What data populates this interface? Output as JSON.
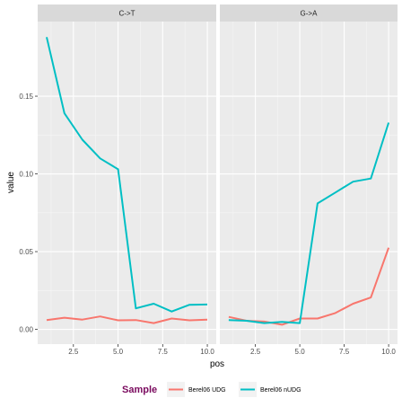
{
  "chart_data": {
    "type": "line",
    "xlabel": "pos",
    "ylabel": "value",
    "xlim": [
      0.5,
      10.5
    ],
    "ylim": [
      -0.0095,
      0.198
    ],
    "x_ticks": [
      2.5,
      5.0,
      7.5,
      10.0
    ],
    "x_tick_labels": [
      "2.5",
      "5.0",
      "7.5",
      "10.0"
    ],
    "y_ticks": [
      0.0,
      0.05,
      0.1,
      0.15
    ],
    "y_tick_labels": [
      "0.00",
      "0.05",
      "0.10",
      "0.15"
    ],
    "grid": true,
    "facets": [
      {
        "label": "C->T",
        "series": [
          {
            "name": "Berel06 UDG",
            "x": [
              1,
              2,
              3,
              4,
              5,
              6,
              7,
              8,
              9,
              10
            ],
            "y": [
              0.006,
              0.0075,
              0.0063,
              0.0083,
              0.0058,
              0.006,
              0.004,
              0.007,
              0.0058,
              0.0062
            ]
          },
          {
            "name": "Berel06 nUDG",
            "x": [
              1,
              2,
              3,
              4,
              5,
              6,
              7,
              8,
              9,
              10
            ],
            "y": [
              0.188,
              0.139,
              0.122,
              0.11,
              0.103,
              0.0135,
              0.0165,
              0.0115,
              0.0158,
              0.016
            ]
          }
        ]
      },
      {
        "label": "G->A",
        "series": [
          {
            "name": "Berel06 UDG",
            "x": [
              1,
              2,
              3,
              4,
              5,
              6,
              7,
              8,
              9,
              10
            ],
            "y": [
              0.008,
              0.0055,
              0.005,
              0.003,
              0.007,
              0.007,
              0.0105,
              0.0165,
              0.0205,
              0.0525
            ]
          },
          {
            "name": "Berel06 nUDG",
            "x": [
              1,
              2,
              3,
              4,
              5,
              6,
              7,
              8,
              9,
              10
            ],
            "y": [
              0.006,
              0.0055,
              0.004,
              0.0048,
              0.004,
              0.081,
              0.088,
              0.095,
              0.097,
              0.133
            ]
          }
        ]
      }
    ],
    "legend": {
      "title": "Sample",
      "placement": "bottom",
      "entries": [
        "Berel06 UDG",
        "Berel06 nUDG"
      ]
    },
    "colors": {
      "Berel06 UDG": "#F8766D",
      "Berel06 nUDG": "#00BFC4",
      "panel_bg": "#EBEBEB",
      "strip_bg": "#D9D9D9",
      "grid_major": "#FFFFFF",
      "legend_title": "#7A0A5E"
    }
  }
}
